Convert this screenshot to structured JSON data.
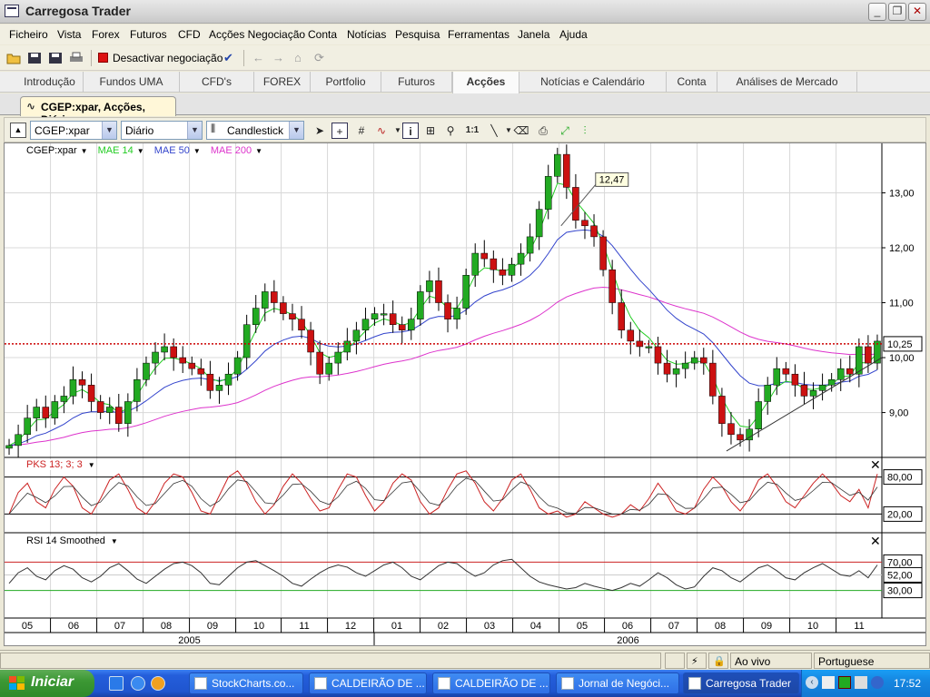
{
  "app": {
    "title": "Carregosa Trader"
  },
  "menu": [
    "Ficheiro",
    "Vista",
    "Forex",
    "Futuros",
    "CFD",
    "Acções Negociação",
    "Conta",
    "Notícias",
    "Pesquisa",
    "Ferramentas",
    "Janela",
    "Ajuda"
  ],
  "toolbar": {
    "deactivate_label": "Desactivar negociação"
  },
  "module_tabs": [
    "Introdução",
    "Fundos UMA",
    "CFD's",
    "FOREX",
    "Portfolio",
    "Futuros",
    "Acções",
    "Notícias e Calendário",
    "Conta",
    "Análises de Mercado"
  ],
  "active_module_tab": "Acções",
  "document_tab": {
    "label": "CGEP:xpar, Acções, Diário"
  },
  "chart_toolbar": {
    "symbol": "CGEP:xpar",
    "period": "Diário",
    "style": "Candlestick"
  },
  "legend": {
    "symbol": "CGEP:xpar",
    "mae14": "MAE 14",
    "mae50": "MAE 50",
    "mae200": "MAE 200"
  },
  "colors": {
    "mae14": "#22cc22",
    "mae50": "#3344cc",
    "mae200": "#dd33cc",
    "up": "#22aa22",
    "down": "#cc1111",
    "stoch_k": "#cc2222",
    "ref_line": "#cc0000",
    "grid": "#d8d8d8"
  },
  "chart_data": {
    "type": "candlestick",
    "price_axis": {
      "ticks": [
        "13,00",
        "12,00",
        "11,00",
        "10,00",
        "9,00"
      ],
      "current_value": "10,25",
      "ylim": [
        8.2,
        13.9
      ]
    },
    "annotation": "12,47",
    "price_path": [
      8.4,
      8.6,
      8.9,
      9.1,
      8.9,
      9.2,
      9.3,
      9.6,
      9.5,
      9.2,
      9.0,
      9.1,
      8.8,
      9.2,
      9.6,
      9.9,
      10.1,
      10.2,
      10.0,
      9.9,
      9.8,
      9.7,
      9.4,
      9.5,
      9.7,
      10.0,
      10.6,
      10.9,
      11.2,
      11.0,
      10.8,
      10.7,
      10.5,
      10.1,
      9.7,
      9.9,
      10.1,
      10.3,
      10.5,
      10.7,
      10.8,
      10.8,
      10.6,
      10.5,
      10.7,
      11.2,
      11.4,
      11.0,
      10.7,
      10.9,
      11.5,
      11.9,
      11.8,
      11.6,
      11.5,
      11.7,
      11.9,
      12.2,
      12.7,
      13.3,
      13.7,
      13.1,
      12.5,
      12.4,
      12.2,
      11.6,
      11.0,
      10.5,
      10.3,
      10.2,
      10.2,
      9.9,
      9.7,
      9.8,
      9.9,
      10.0,
      9.9,
      9.3,
      8.8,
      8.6,
      8.5,
      8.7,
      9.2,
      9.5,
      9.8,
      9.7,
      9.5,
      9.3,
      9.4,
      9.5,
      9.6,
      9.8,
      9.7,
      10.2,
      9.9,
      10.3
    ],
    "x_ticks": [
      "05",
      "06",
      "07",
      "08",
      "09",
      "10",
      "11",
      "12",
      "01",
      "02",
      "03",
      "04",
      "05",
      "06",
      "07",
      "08",
      "09",
      "10",
      "11"
    ],
    "years": [
      "2005",
      "2006"
    ],
    "stoch": {
      "label": "PKS 13; 3; 3",
      "levels": [
        "80,00",
        "20,00"
      ],
      "values": [
        20,
        55,
        70,
        40,
        30,
        60,
        80,
        65,
        30,
        20,
        45,
        75,
        85,
        60,
        30,
        20,
        40,
        70,
        85,
        80,
        55,
        25,
        20,
        50,
        80,
        90,
        70,
        40,
        20,
        35,
        65,
        85,
        70,
        45,
        25,
        30,
        60,
        85,
        80,
        50,
        25,
        40,
        70,
        85,
        75,
        40,
        20,
        30,
        60,
        85,
        90,
        70,
        40,
        25,
        45,
        75,
        85,
        60,
        30,
        20,
        25,
        15,
        20,
        40,
        30,
        20,
        15,
        20,
        35,
        25,
        45,
        70,
        50,
        25,
        20,
        30,
        60,
        80,
        65,
        40,
        25,
        45,
        75,
        85,
        65,
        40,
        30,
        50,
        70,
        85,
        70,
        50,
        40,
        60,
        30,
        85
      ]
    },
    "rsi": {
      "label": "RSI 14 Smoothed",
      "levels": [
        "70,00",
        "52,00",
        "30,00"
      ],
      "values": [
        40,
        55,
        62,
        50,
        45,
        58,
        65,
        60,
        48,
        42,
        50,
        62,
        68,
        58,
        46,
        40,
        50,
        60,
        68,
        70,
        65,
        55,
        40,
        38,
        50,
        62,
        70,
        72,
        65,
        58,
        50,
        40,
        36,
        46,
        55,
        62,
        66,
        63,
        55,
        50,
        58,
        66,
        70,
        62,
        50,
        45,
        55,
        65,
        70,
        68,
        58,
        50,
        55,
        66,
        72,
        74,
        62,
        50,
        42,
        38,
        35,
        32,
        34,
        40,
        36,
        33,
        30,
        34,
        40,
        36,
        45,
        55,
        48,
        38,
        32,
        35,
        50,
        62,
        58,
        48,
        42,
        52,
        62,
        66,
        58,
        48,
        45,
        55,
        62,
        68,
        60,
        52,
        50,
        58,
        48,
        66
      ]
    }
  },
  "status": {
    "live": "Ao vivo",
    "language": "Portuguese"
  },
  "taskbar": {
    "start": "Iniciar",
    "items": [
      "StockCharts.co...",
      "CALDEIRÃO DE ...",
      "CALDEIRÃO DE ...",
      "Jornal de Negóci...",
      "Carregosa Trader"
    ],
    "clock": "17:52"
  }
}
